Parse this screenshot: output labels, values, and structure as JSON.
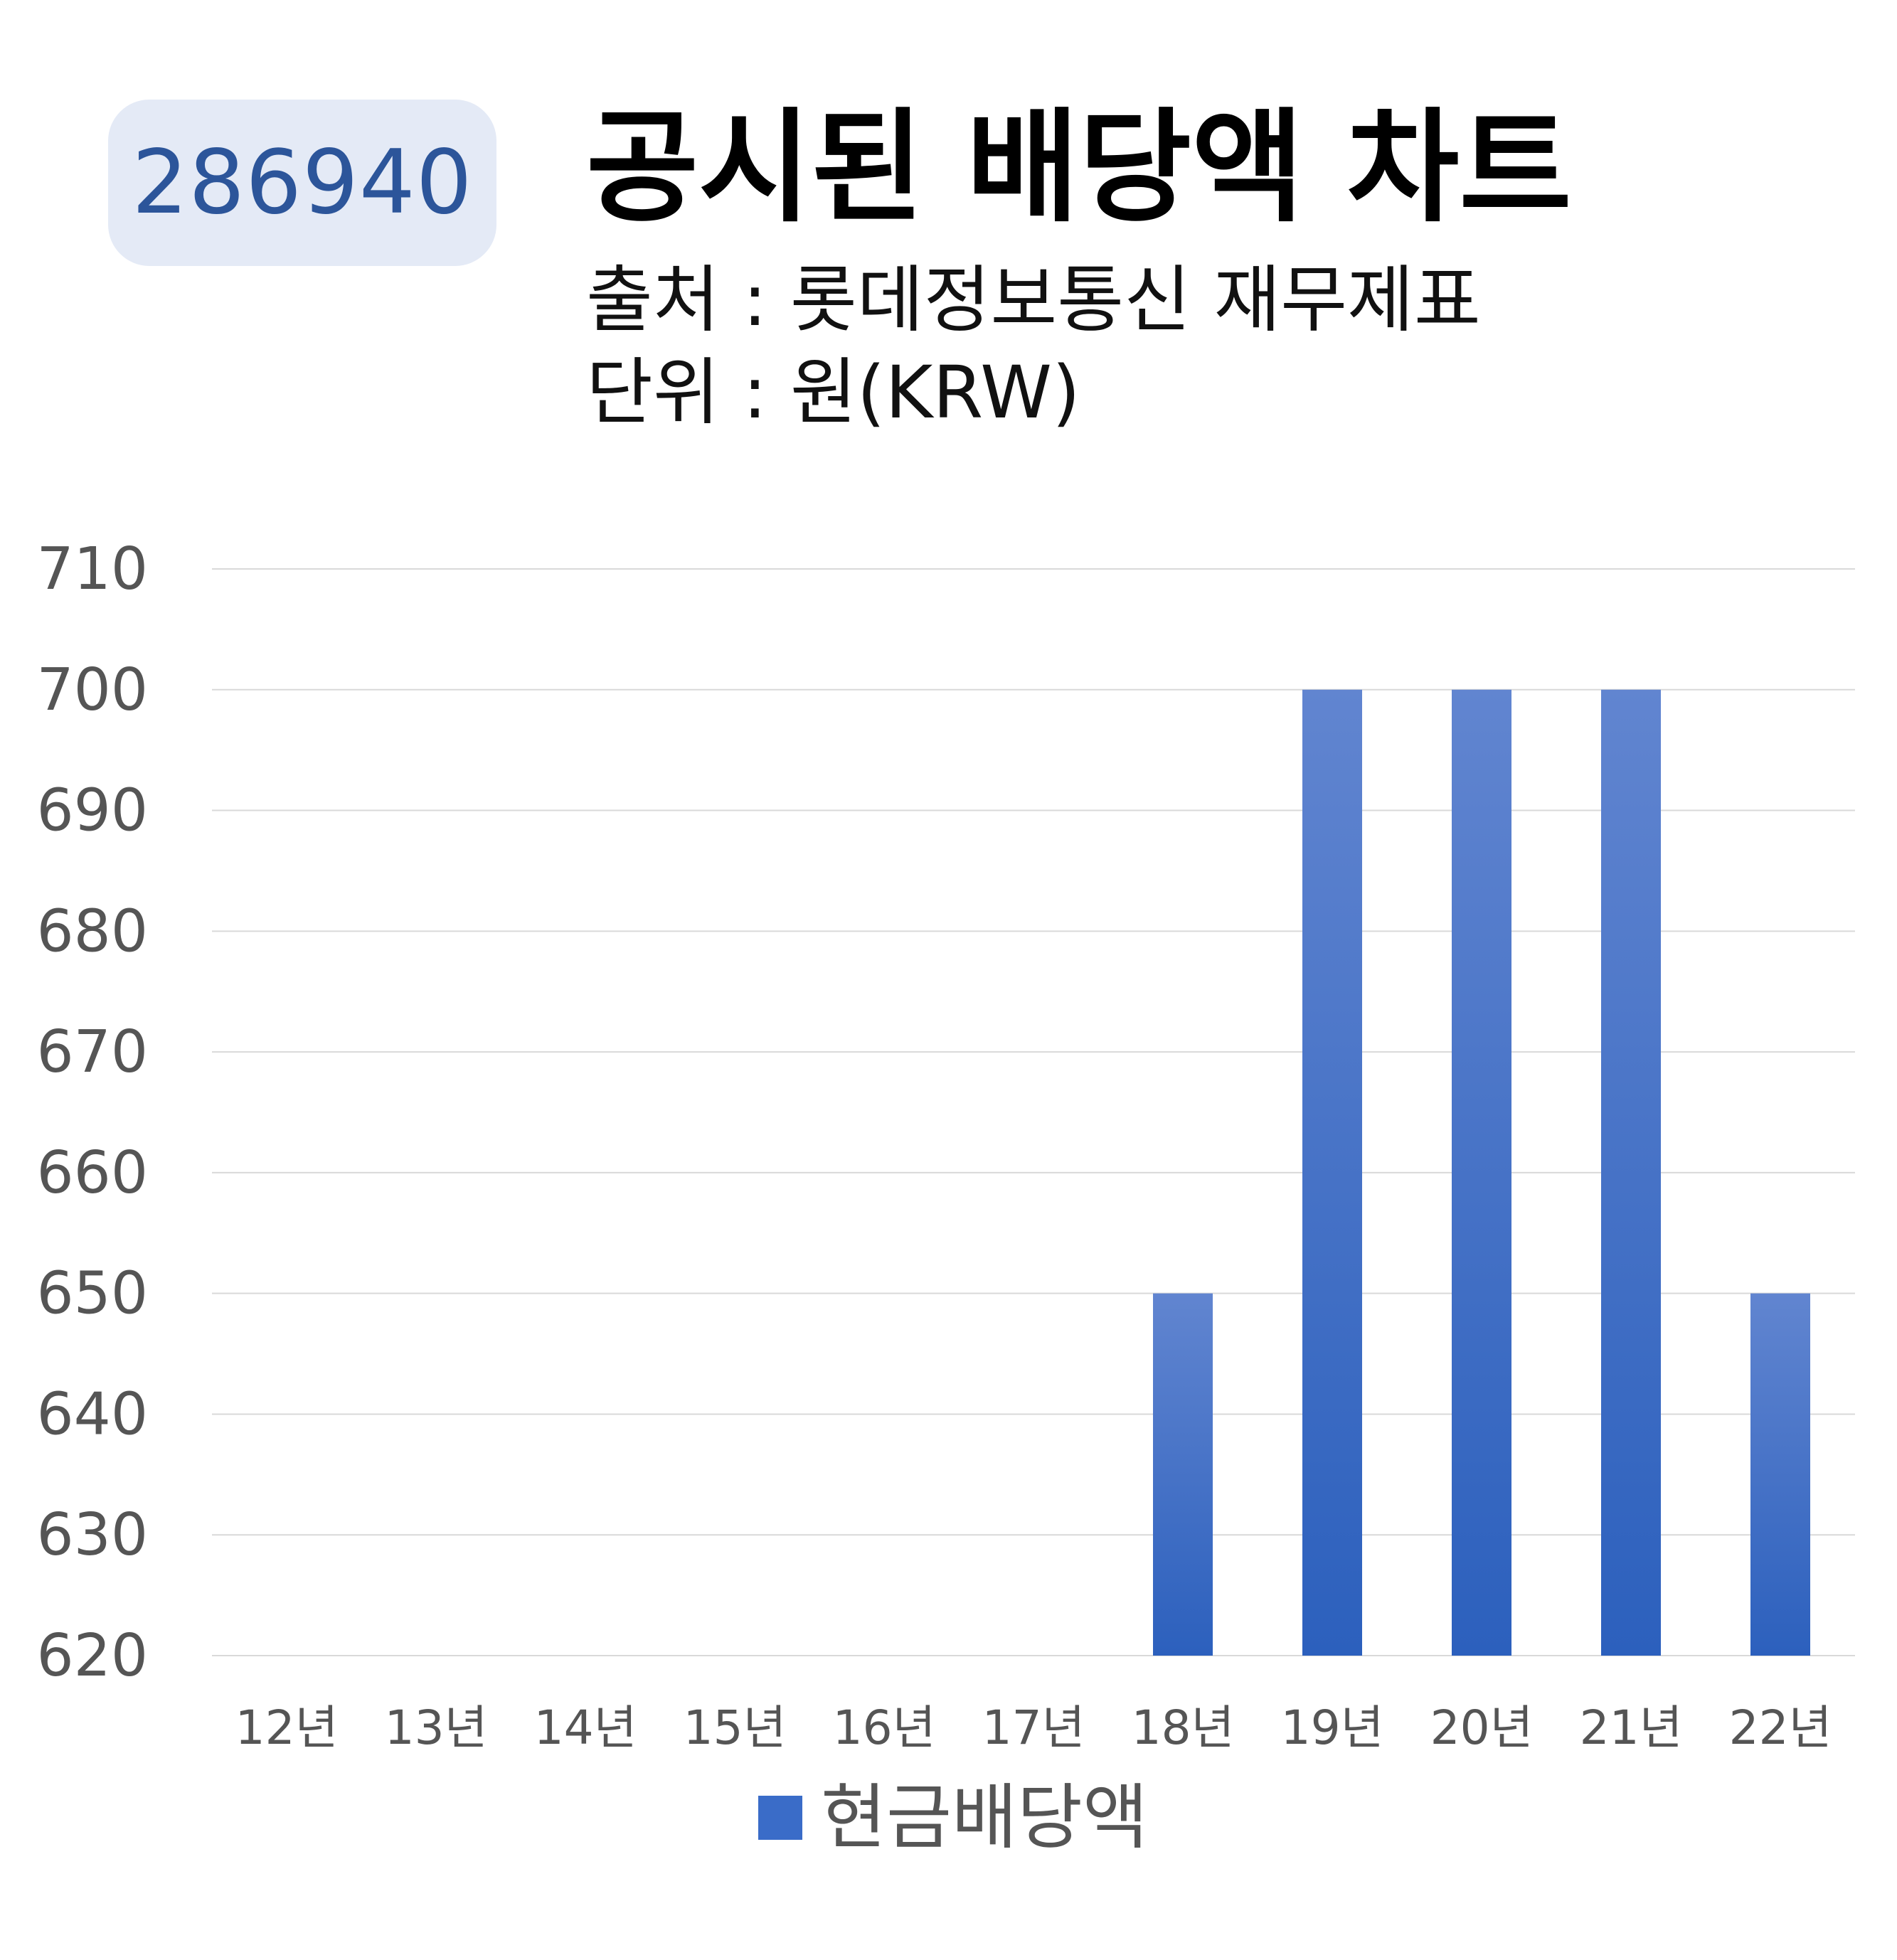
{
  "badge": {
    "code": "286940"
  },
  "header": {
    "title": "공시된 배당액 차트",
    "source": "출처 : 롯데정보통신 재무제표",
    "unit": "단위 : 원(KRW)"
  },
  "chart_data": {
    "type": "bar",
    "categories": [
      "12년",
      "13년",
      "14년",
      "15년",
      "16년",
      "17년",
      "18년",
      "19년",
      "20년",
      "21년",
      "22년"
    ],
    "series": [
      {
        "name": "현금배당액",
        "values": [
          null,
          null,
          null,
          null,
          null,
          null,
          650,
          700,
          700,
          700,
          650
        ]
      }
    ],
    "ylim": [
      620,
      710
    ],
    "yticks": [
      620,
      630,
      640,
      650,
      660,
      670,
      680,
      690,
      700,
      710
    ],
    "grid": true,
    "legend_position": "bottom-center",
    "colors": {
      "bar_top": "#6185d0",
      "bar_bottom": "#2c60bd",
      "grid": "#d9d9d9",
      "tick": "#555555"
    }
  },
  "legend": {
    "label": "현금배당액"
  }
}
